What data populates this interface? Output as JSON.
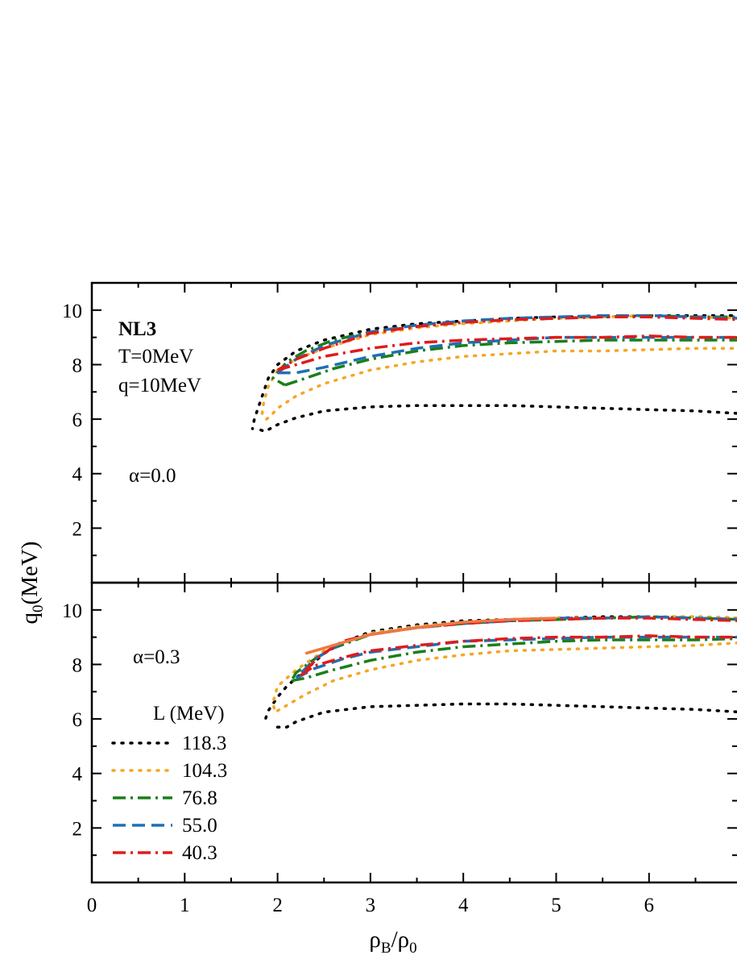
{
  "chart_data": [
    {
      "type": "line",
      "panel": "top",
      "xlabel": "ρB/ρ0",
      "ylabel": "q0(MeV)",
      "xlim": [
        0,
        7
      ],
      "ylim": [
        0,
        11
      ],
      "annotations": [
        "NL3",
        "T=0MeV",
        "q=10MeV",
        "α=0.0"
      ],
      "series": [
        {
          "name": "118.3",
          "color": "#000000",
          "style": "dot",
          "x": [
            1.82,
            1.86,
            1.92,
            2.0,
            2.2,
            2.5,
            3.0,
            3.5,
            4.0,
            4.5,
            5.0,
            5.5,
            6.0,
            6.5,
            7.0,
            7.0,
            6.5,
            6.0,
            5.5,
            5.0,
            4.5,
            4.0,
            3.5,
            3.0,
            2.5,
            2.2,
            2.0,
            1.9,
            1.85,
            1.8,
            1.75,
            1.73
          ],
          "y": [
            5.6,
            5.55,
            5.65,
            5.8,
            6.05,
            6.3,
            6.45,
            6.5,
            6.5,
            6.5,
            6.45,
            6.4,
            6.35,
            6.3,
            6.2,
            9.8,
            9.8,
            9.8,
            9.75,
            9.75,
            9.7,
            9.6,
            9.5,
            9.3,
            8.9,
            8.5,
            8.0,
            7.5,
            7.0,
            6.5,
            6.0,
            5.65
          ]
        },
        {
          "name": "104.3",
          "color": "#f5a623",
          "style": "dot",
          "x": [
            1.88,
            1.92,
            2.0,
            2.2,
            2.5,
            3.0,
            3.5,
            4.0,
            4.5,
            5.0,
            5.5,
            6.0,
            6.5,
            7.0,
            7.0,
            6.5,
            6.0,
            5.5,
            5.0,
            4.5,
            4.0,
            3.5,
            3.0,
            2.5,
            2.2,
            2.0,
            1.9,
            1.85,
            1.83
          ],
          "y": [
            6.0,
            6.1,
            6.4,
            6.85,
            7.3,
            7.8,
            8.1,
            8.3,
            8.4,
            8.5,
            8.5,
            8.55,
            8.6,
            8.6,
            9.7,
            9.75,
            9.8,
            9.75,
            9.7,
            9.6,
            9.5,
            9.35,
            9.1,
            8.6,
            8.2,
            7.8,
            7.2,
            6.6,
            6.1
          ]
        },
        {
          "name": "76.8",
          "color": "#1a7f1a",
          "style": "dashdot",
          "x": [
            2.08,
            2.3,
            2.6,
            3.0,
            3.5,
            4.0,
            4.5,
            5.0,
            5.5,
            6.0,
            6.5,
            7.0,
            7.0,
            6.5,
            6.0,
            5.5,
            5.0,
            4.5,
            4.0,
            3.5,
            3.0,
            2.6,
            2.3,
            2.1,
            2.0,
            1.95,
            2.08
          ],
          "y": [
            7.25,
            7.5,
            7.85,
            8.2,
            8.5,
            8.7,
            8.8,
            8.85,
            8.9,
            8.9,
            8.9,
            8.9,
            9.75,
            9.75,
            9.8,
            9.75,
            9.7,
            9.65,
            9.55,
            9.4,
            9.2,
            8.9,
            8.5,
            8.1,
            7.7,
            7.5,
            7.25
          ]
        },
        {
          "name": "55.0",
          "color": "#1f6fb5",
          "style": "dash",
          "x": [
            2.0,
            2.2,
            2.5,
            3.0,
            3.5,
            4.0,
            4.5,
            5.0,
            5.5,
            6.0,
            6.5,
            7.0,
            7.0,
            6.5,
            6.0,
            5.5,
            5.0,
            4.5,
            4.0,
            3.5,
            3.0,
            2.5,
            2.2,
            2.0
          ],
          "y": [
            7.7,
            7.7,
            7.9,
            8.3,
            8.6,
            8.8,
            8.9,
            9.0,
            9.0,
            9.0,
            9.0,
            9.0,
            9.7,
            9.75,
            9.8,
            9.8,
            9.75,
            9.7,
            9.6,
            9.45,
            9.2,
            8.7,
            8.2,
            7.7
          ]
        },
        {
          "name": "40.3",
          "color": "#e01b1b",
          "style": "dashdot",
          "x": [
            2.0,
            2.2,
            2.5,
            3.0,
            3.5,
            4.0,
            4.5,
            5.0,
            5.5,
            6.0,
            6.5,
            7.0,
            7.0,
            6.5,
            6.0,
            5.5,
            5.0,
            4.5,
            4.0,
            3.5,
            3.0,
            2.5,
            2.2,
            2.0
          ],
          "y": [
            7.8,
            8.0,
            8.3,
            8.6,
            8.8,
            8.9,
            8.95,
            9.0,
            9.0,
            9.05,
            9.0,
            9.0,
            9.65,
            9.7,
            9.75,
            9.75,
            9.7,
            9.65,
            9.55,
            9.4,
            9.15,
            8.6,
            8.2,
            7.8
          ]
        }
      ]
    },
    {
      "type": "line",
      "panel": "bottom",
      "xlabel": "ρB/ρ0",
      "ylabel": "q0(MeV)",
      "xlim": [
        0,
        7
      ],
      "ylim": [
        0,
        11
      ],
      "annotations": [
        "α=0.3"
      ],
      "series": [
        {
          "name": "118.3",
          "color": "#000000",
          "style": "dot",
          "x": [
            2.0,
            2.1,
            2.2,
            2.5,
            3.0,
            3.5,
            4.0,
            4.5,
            5.0,
            5.5,
            6.0,
            6.5,
            7.0,
            7.0,
            6.5,
            6.0,
            5.5,
            5.0,
            4.5,
            4.0,
            3.5,
            3.0,
            2.7,
            2.5,
            2.3,
            2.1,
            2.0,
            1.9,
            1.87,
            1.88
          ],
          "y": [
            5.7,
            5.7,
            5.9,
            6.25,
            6.45,
            6.5,
            6.55,
            6.55,
            6.5,
            6.45,
            6.4,
            6.35,
            6.25,
            9.7,
            9.75,
            9.75,
            9.75,
            9.7,
            9.65,
            9.6,
            9.45,
            9.2,
            8.8,
            8.4,
            7.8,
            7.2,
            6.8,
            6.3,
            6.0,
            5.8
          ]
        },
        {
          "name": "104.3",
          "color": "#f5a623",
          "style": "dot",
          "x": [
            2.0,
            2.1,
            2.3,
            2.6,
            3.0,
            3.5,
            4.0,
            4.5,
            5.0,
            5.5,
            6.0,
            6.5,
            7.0,
            7.0,
            6.5,
            6.0,
            5.5,
            5.0,
            4.5,
            4.0,
            3.5,
            3.0,
            2.5,
            2.2,
            2.0,
            1.95,
            1.97
          ],
          "y": [
            6.3,
            6.5,
            6.9,
            7.4,
            7.8,
            8.15,
            8.35,
            8.5,
            8.55,
            8.6,
            8.65,
            8.7,
            8.8,
            9.7,
            9.75,
            9.75,
            9.7,
            9.7,
            9.65,
            9.55,
            9.4,
            9.15,
            8.5,
            7.8,
            7.2,
            6.6,
            6.3
          ]
        },
        {
          "name": "76.8",
          "color": "#1a7f1a",
          "style": "dashdot",
          "x": [
            2.15,
            2.3,
            2.6,
            3.0,
            3.5,
            4.0,
            4.5,
            5.0,
            5.5,
            6.0,
            6.5,
            7.0,
            7.0,
            6.5,
            6.0,
            5.5,
            5.0,
            4.5,
            4.0,
            3.5,
            3.0,
            2.6,
            2.4,
            2.2,
            2.15
          ],
          "y": [
            7.4,
            7.5,
            7.8,
            8.15,
            8.45,
            8.65,
            8.75,
            8.85,
            8.9,
            8.9,
            8.9,
            8.95,
            9.65,
            9.7,
            9.75,
            9.7,
            9.65,
            9.6,
            9.5,
            9.35,
            9.1,
            8.6,
            8.2,
            7.7,
            7.4
          ]
        },
        {
          "name": "55.0",
          "color": "#1f6fb5",
          "style": "dash",
          "x": [
            2.2,
            2.4,
            2.7,
            3.0,
            3.5,
            4.0,
            4.5,
            5.0,
            5.5,
            6.0,
            6.5,
            7.0,
            7.0,
            6.5,
            6.0,
            5.5,
            5.0,
            4.5,
            4.0,
            3.5,
            3.0,
            2.7,
            2.4,
            2.2
          ],
          "y": [
            7.5,
            7.85,
            8.2,
            8.45,
            8.65,
            8.85,
            8.9,
            8.95,
            9.0,
            9.0,
            9.0,
            9.0,
            9.65,
            9.7,
            9.75,
            9.7,
            9.7,
            9.6,
            9.5,
            9.35,
            9.1,
            8.8,
            8.2,
            7.5
          ]
        },
        {
          "name": "40.3",
          "color": "#e01b1b",
          "style": "dashdot",
          "x": [
            2.25,
            2.4,
            2.7,
            3.0,
            3.5,
            4.0,
            4.5,
            5.0,
            5.5,
            6.0,
            6.5,
            7.0,
            7.0,
            6.5,
            6.0,
            5.5,
            5.0,
            4.5,
            4.0,
            3.5,
            3.0,
            2.7,
            2.45,
            2.25
          ],
          "y": [
            7.6,
            7.95,
            8.25,
            8.5,
            8.7,
            8.85,
            8.95,
            9.0,
            9.0,
            9.05,
            9.0,
            9.0,
            9.6,
            9.65,
            9.7,
            9.7,
            9.65,
            9.6,
            9.5,
            9.35,
            9.1,
            8.85,
            8.3,
            7.6
          ]
        },
        {
          "x": [
            2.3,
            2.5,
            2.8,
            3.0,
            3.5,
            4.0,
            4.5,
            5.0
          ],
          "y": [
            8.4,
            8.6,
            8.9,
            9.1,
            9.35,
            9.55,
            9.65,
            9.7
          ],
          "color": "#f07840",
          "style": "solid"
        }
      ],
      "legend": {
        "title": "L (MeV)",
        "placement": "bottom-left",
        "entries": [
          {
            "label": "118.3",
            "color": "#000000",
            "style": "dot"
          },
          {
            "label": "104.3",
            "color": "#f5a623",
            "style": "dot"
          },
          {
            "label": "76.8",
            "color": "#1a7f1a",
            "style": "dashdot"
          },
          {
            "label": "55.0",
            "color": "#1f6fb5",
            "style": "dash"
          },
          {
            "label": "40.3",
            "color": "#e01b1b",
            "style": "dashdot"
          }
        ]
      }
    }
  ],
  "axes": {
    "x_ticks": [
      "0",
      "1",
      "2",
      "3",
      "4",
      "5",
      "6"
    ],
    "y_ticks": [
      "2",
      "4",
      "6",
      "8",
      "10"
    ],
    "x_title": "ρB/ρ0",
    "y_title": "q0(MeV)"
  }
}
